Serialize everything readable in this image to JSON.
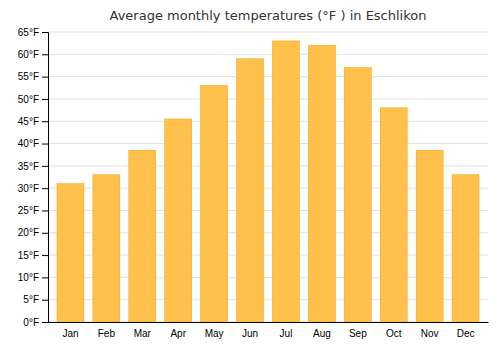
{
  "chart_data": {
    "type": "bar",
    "title": "Average monthly temperatures (°F ) in Eschlikon",
    "categories": [
      "Jan",
      "Feb",
      "Mar",
      "Apr",
      "May",
      "Jun",
      "Jul",
      "Aug",
      "Sep",
      "Oct",
      "Nov",
      "Dec"
    ],
    "values": [
      31,
      33,
      38.5,
      45.5,
      53,
      59,
      63,
      62,
      57,
      48,
      38.5,
      33
    ],
    "color": "#FFC04C",
    "ylim": [
      0,
      65
    ],
    "yticks": [
      {
        "value": 0,
        "label": "0°F"
      },
      {
        "value": 5,
        "label": "5°F"
      },
      {
        "value": 10,
        "label": "10°F"
      },
      {
        "value": 15,
        "label": "15°F"
      },
      {
        "value": 20,
        "label": "20°F"
      },
      {
        "value": 25,
        "label": "25°F"
      },
      {
        "value": 30,
        "label": "30°F"
      },
      {
        "value": 35,
        "label": "35°F"
      },
      {
        "value": 40,
        "label": "40°F"
      },
      {
        "value": 45,
        "label": "45°F"
      },
      {
        "value": 50,
        "label": "50°F"
      },
      {
        "value": 55,
        "label": "55°F"
      },
      {
        "value": 60,
        "label": "60°F"
      },
      {
        "value": 65,
        "label": "65°F"
      }
    ],
    "grid": true
  }
}
